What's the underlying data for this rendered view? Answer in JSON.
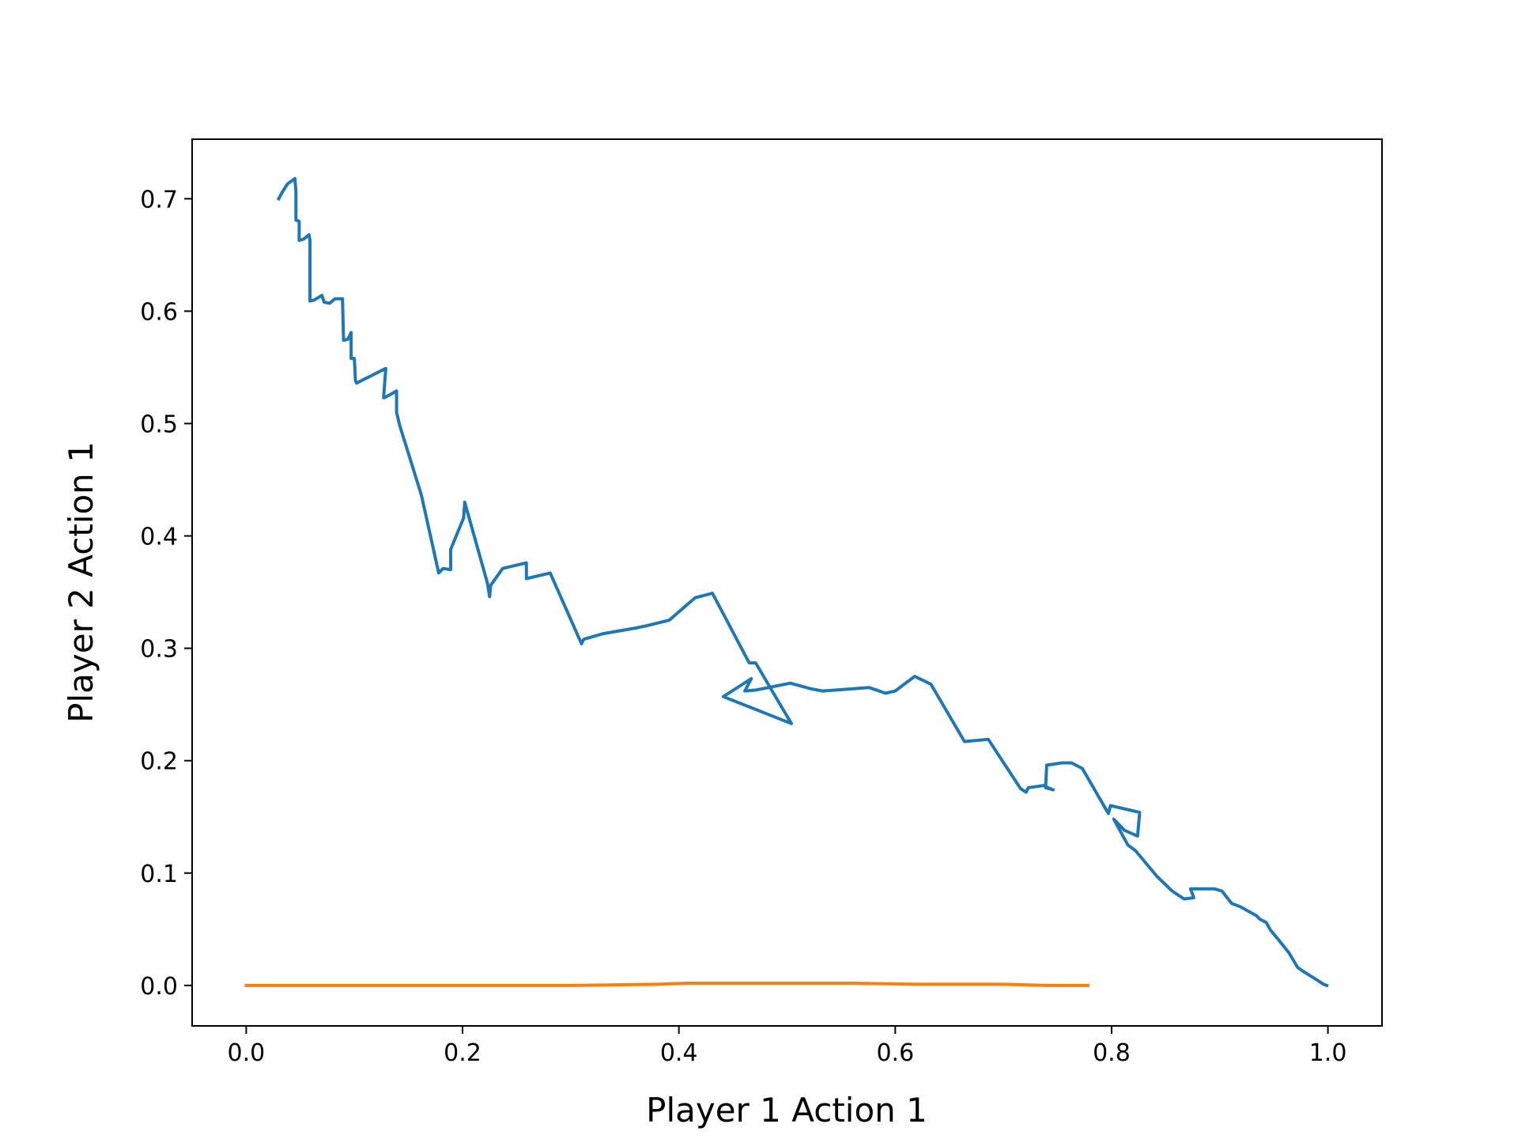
{
  "chart_data": {
    "type": "line",
    "title": "",
    "xlabel": "Player 1 Action 1",
    "ylabel": "Player 2 Action 1",
    "xlim": [
      -0.05,
      1.05
    ],
    "ylim": [
      -0.036,
      0.753
    ],
    "grid": false,
    "x_ticks": [
      {
        "value": 0.0,
        "label": "0.0"
      },
      {
        "value": 0.2,
        "label": "0.2"
      },
      {
        "value": 0.4,
        "label": "0.4"
      },
      {
        "value": 0.6,
        "label": "0.6"
      },
      {
        "value": 0.8,
        "label": "0.8"
      },
      {
        "value": 1.0,
        "label": "1.0"
      }
    ],
    "y_ticks": [
      {
        "value": 0.0,
        "label": "0.0"
      },
      {
        "value": 0.1,
        "label": "0.1"
      },
      {
        "value": 0.2,
        "label": "0.2"
      },
      {
        "value": 0.3,
        "label": "0.3"
      },
      {
        "value": 0.4,
        "label": "0.4"
      },
      {
        "value": 0.5,
        "label": "0.5"
      },
      {
        "value": 0.6,
        "label": "0.6"
      },
      {
        "value": 0.7,
        "label": "0.7"
      }
    ],
    "series": [
      {
        "color": "#1f77b4",
        "x": [
          0.03,
          0.034,
          0.038,
          0.045,
          0.046,
          0.046,
          0.049,
          0.049,
          0.053,
          0.058,
          0.059,
          0.059,
          0.059,
          0.063,
          0.07,
          0.072,
          0.077,
          0.082,
          0.089,
          0.09,
          0.09,
          0.094,
          0.097,
          0.097,
          0.099,
          0.1,
          0.101,
          0.102,
          0.129,
          0.127,
          0.128,
          0.139,
          0.139,
          0.142,
          0.162,
          0.178,
          0.182,
          0.189,
          0.189,
          0.201,
          0.202,
          0.223,
          0.225,
          0.226,
          0.237,
          0.259,
          0.259,
          0.281,
          0.31,
          0.312,
          0.33,
          0.36,
          0.37,
          0.391,
          0.415,
          0.431,
          0.465,
          0.471,
          0.504,
          0.441,
          0.467,
          0.461,
          0.472,
          0.503,
          0.522,
          0.533,
          0.576,
          0.591,
          0.6,
          0.618,
          0.633,
          0.664,
          0.686,
          0.716,
          0.721,
          0.723,
          0.738,
          0.739,
          0.746,
          0.739,
          0.74,
          0.754,
          0.763,
          0.773,
          0.797,
          0.799,
          0.826,
          0.824,
          0.812,
          0.802,
          0.815,
          0.822,
          0.842,
          0.856,
          0.867,
          0.876,
          0.873,
          0.89,
          0.895,
          0.902,
          0.911,
          0.919,
          0.934,
          0.937,
          0.943,
          0.947,
          0.954,
          0.964,
          0.972,
          0.978,
          0.988,
          0.996,
          0.999
        ],
        "y": [
          0.7,
          0.707,
          0.713,
          0.718,
          0.706,
          0.681,
          0.68,
          0.663,
          0.664,
          0.668,
          0.663,
          0.625,
          0.609,
          0.61,
          0.614,
          0.608,
          0.607,
          0.611,
          0.611,
          0.575,
          0.574,
          0.575,
          0.581,
          0.558,
          0.558,
          0.558,
          0.538,
          0.536,
          0.549,
          0.523,
          0.523,
          0.529,
          0.51,
          0.498,
          0.436,
          0.367,
          0.371,
          0.37,
          0.388,
          0.416,
          0.43,
          0.358,
          0.346,
          0.356,
          0.371,
          0.376,
          0.362,
          0.367,
          0.304,
          0.308,
          0.313,
          0.318,
          0.32,
          0.325,
          0.345,
          0.349,
          0.287,
          0.287,
          0.233,
          0.257,
          0.273,
          0.262,
          0.263,
          0.269,
          0.264,
          0.262,
          0.265,
          0.26,
          0.262,
          0.275,
          0.268,
          0.217,
          0.219,
          0.175,
          0.172,
          0.176,
          0.178,
          0.177,
          0.174,
          0.176,
          0.196,
          0.198,
          0.198,
          0.193,
          0.153,
          0.16,
          0.154,
          0.133,
          0.138,
          0.148,
          0.125,
          0.12,
          0.097,
          0.084,
          0.077,
          0.078,
          0.086,
          0.086,
          0.086,
          0.084,
          0.073,
          0.07,
          0.062,
          0.059,
          0.056,
          0.049,
          0.041,
          0.029,
          0.016,
          0.012,
          0.006,
          0.001,
          0.0
        ]
      },
      {
        "color": "#ff7f0e",
        "x": [
          0.0,
          0.1,
          0.2,
          0.3,
          0.38,
          0.41,
          0.44,
          0.5,
          0.56,
          0.62,
          0.7,
          0.74,
          0.778
        ],
        "y": [
          0.0,
          0.0,
          0.0,
          0.0,
          0.001,
          0.002,
          0.002,
          0.002,
          0.002,
          0.001,
          0.001,
          0.0,
          0.0
        ]
      }
    ]
  }
}
